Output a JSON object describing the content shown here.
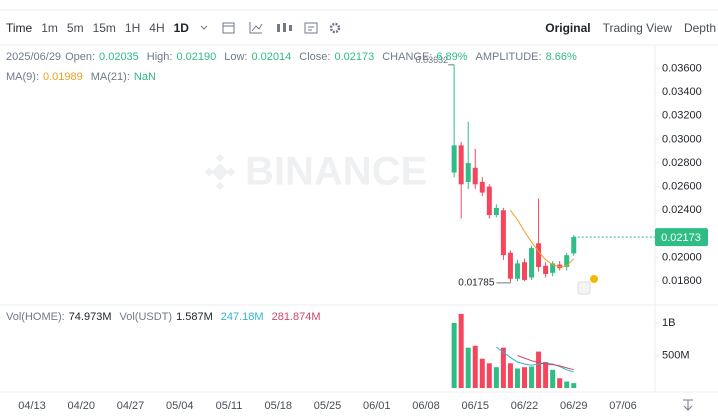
{
  "toolbar": {
    "time_label": "Time",
    "intervals": [
      "1m",
      "5m",
      "15m",
      "1H",
      "4H",
      "1D"
    ],
    "views": [
      "Original",
      "Trading View",
      "Depth"
    ]
  },
  "chart_data": {
    "type": "candlestick",
    "info": {
      "date": "2025/06/29",
      "open_label": "Open:",
      "open": "0.02035",
      "high_label": "High:",
      "high": "0.02190",
      "low_label": "Low:",
      "low": "0.02014",
      "close_label": "Close:",
      "close": "0.02173",
      "change_label": "CHANGE:",
      "change": "6.89%",
      "amplitude_label": "AMPLITUDE:",
      "amplitude": "8.66%"
    },
    "ma_legend": [
      {
        "name": "MA(9):",
        "value": "0.01989",
        "color": "#f0a020"
      },
      {
        "name": "MA(21):",
        "value": "NaN",
        "color": "#2ebd85"
      }
    ],
    "x": [
      "06/12",
      "06/13",
      "06/14",
      "06/15",
      "06/16",
      "06/17",
      "06/18",
      "06/19",
      "06/20",
      "06/21",
      "06/22",
      "06/23",
      "06/24",
      "06/25",
      "06/26",
      "06/27",
      "06/28",
      "06/29"
    ],
    "open": [
      0.0272,
      0.0295,
      0.0264,
      0.0276,
      0.0264,
      0.026,
      0.0236,
      0.024,
      0.0204,
      0.0182,
      0.0196,
      0.0183,
      0.0212,
      0.0193,
      0.0187,
      0.0194,
      0.0192,
      0.02035
    ],
    "high": [
      0.03632,
      0.0298,
      0.0315,
      0.0292,
      0.0268,
      0.0262,
      0.0245,
      0.0242,
      0.0206,
      0.0198,
      0.0199,
      0.021,
      0.025,
      0.0196,
      0.0197,
      0.0197,
      0.0204,
      0.0219
    ],
    "low": [
      0.0268,
      0.0233,
      0.0258,
      0.0258,
      0.0252,
      0.0233,
      0.0234,
      0.0198,
      0.01785,
      0.018,
      0.018,
      0.0181,
      0.0188,
      0.0183,
      0.0184,
      0.0189,
      0.0189,
      0.02014
    ],
    "close": [
      0.0295,
      0.0262,
      0.028,
      0.0262,
      0.0255,
      0.0236,
      0.0242,
      0.0202,
      0.0182,
      0.0195,
      0.0181,
      0.0208,
      0.0192,
      0.0186,
      0.0195,
      0.0191,
      0.0202,
      0.02173
    ],
    "up_color": "#2ebd85",
    "down_color": "#f6465d",
    "ma_line": {
      "color": "#f0a020",
      "values": [
        null,
        null,
        null,
        null,
        null,
        null,
        null,
        null,
        0.024,
        0.0232,
        0.0222,
        0.0213,
        0.0205,
        0.0198,
        0.0194,
        0.0192,
        0.0193,
        0.01989
      ]
    },
    "ylim": [
      0.0164,
      0.038
    ],
    "yticks": [
      {
        "value": 0.018,
        "label": "0.01800"
      },
      {
        "value": 0.02,
        "label": "0.02000"
      },
      {
        "value": 0.022,
        "label": "0.02200"
      },
      {
        "value": 0.024,
        "label": "0.02400"
      },
      {
        "value": 0.026,
        "label": "0.02600"
      },
      {
        "value": 0.028,
        "label": "0.02800"
      },
      {
        "value": 0.03,
        "label": "0.03000"
      },
      {
        "value": 0.032,
        "label": "0.03200"
      },
      {
        "value": 0.034,
        "label": "0.03400"
      },
      {
        "value": 0.036,
        "label": "0.03600"
      }
    ],
    "last_price": {
      "value": 0.02173,
      "label": "0.02173"
    },
    "high_marker": {
      "value": 0.03632,
      "label": "0.03632"
    },
    "low_marker": {
      "value": 0.01785,
      "label": "0.01785"
    },
    "xticks": [
      "04/13",
      "04/20",
      "04/27",
      "05/04",
      "05/11",
      "05/18",
      "05/25",
      "06/01",
      "06/08",
      "06/15",
      "06/22",
      "06/29",
      "07/06"
    ],
    "watermark": "BINANCE",
    "volume": {
      "legend": [
        {
          "name": "Vol(HOME):",
          "value": "74.973M"
        },
        {
          "name": "Vol(USDT)",
          "value": "1.587M"
        }
      ],
      "values": [
        1000000000,
        1140000000,
        620000000,
        650000000,
        450000000,
        380000000,
        320000000,
        620000000,
        380000000,
        300000000,
        320000000,
        330000000,
        560000000,
        400000000,
        280000000,
        150000000,
        100000000,
        74973000
      ],
      "series": [
        {
          "color": "#31b3d0",
          "value_label": "247.18M",
          "values": [
            null,
            null,
            null,
            null,
            null,
            null,
            630000000,
            550000000,
            470000000,
            400000000,
            370000000,
            350000000,
            370000000,
            380000000,
            370000000,
            330000000,
            280000000,
            247180000
          ]
        },
        {
          "color": "#d0456a",
          "value_label": "281.874M",
          "values": [
            null,
            null,
            null,
            null,
            null,
            null,
            null,
            null,
            null,
            500000000,
            460000000,
            420000000,
            390000000,
            370000000,
            360000000,
            340000000,
            310000000,
            281874000
          ]
        }
      ],
      "ylim": [
        0,
        1200000000
      ],
      "yticks": [
        {
          "value": 500000000,
          "label": "500M"
        },
        {
          "value": 1000000000,
          "label": "1B"
        }
      ]
    }
  }
}
